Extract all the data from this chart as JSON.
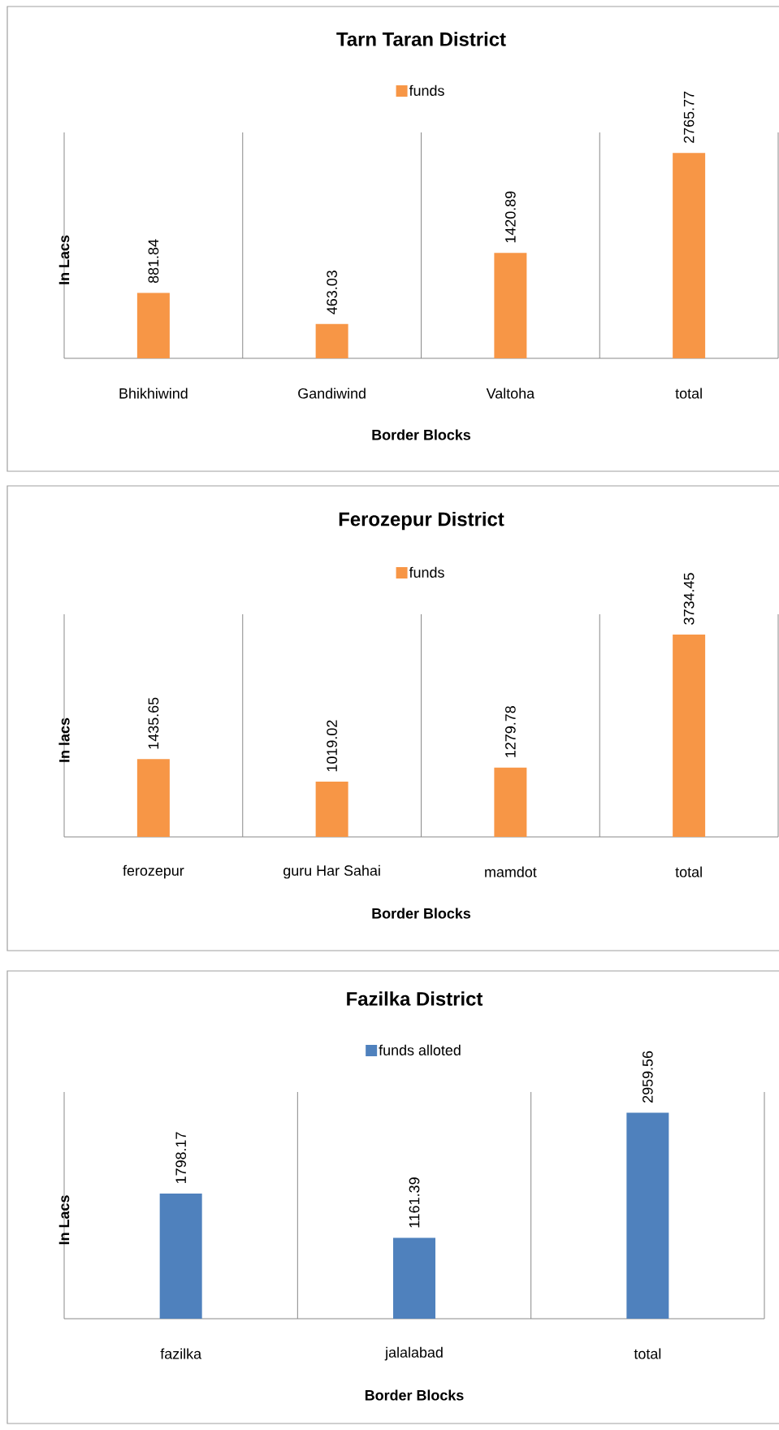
{
  "chart_data": [
    {
      "type": "bar",
      "title": "Tarn Taran District",
      "xlabel": "Border Blocks",
      "ylabel": "In Lacs",
      "categories": [
        "Bhikhiwind",
        "Gandiwind",
        "Valtoha",
        "total"
      ],
      "series": [
        {
          "name": "funds",
          "color": "#f79646",
          "values": [
            881.84,
            463.03,
            1420.89,
            2765.77
          ]
        }
      ],
      "data_labels": true,
      "legend": "top",
      "grid": "x"
    },
    {
      "type": "bar",
      "title": "Ferozepur District",
      "xlabel": "Border Blocks",
      "ylabel": "In lacs",
      "categories": [
        "ferozepur",
        "guru Har Sahai",
        "mamdot",
        "total"
      ],
      "series": [
        {
          "name": "funds",
          "color": "#f79646",
          "values": [
            1435.65,
            1019.02,
            1279.78,
            3734.45
          ]
        }
      ],
      "data_labels": true,
      "legend": "top",
      "grid": "x"
    },
    {
      "type": "bar",
      "title": "Fazilka District",
      "xlabel": "Border Blocks",
      "ylabel": "In Lacs",
      "categories": [
        "fazilka",
        "jalalabad",
        "total"
      ],
      "series": [
        {
          "name": "funds alloted",
          "color": "#4f81bd",
          "values": [
            1798.17,
            1161.39,
            2959.56
          ]
        }
      ],
      "data_labels": true,
      "legend": "top",
      "grid": "x"
    }
  ]
}
